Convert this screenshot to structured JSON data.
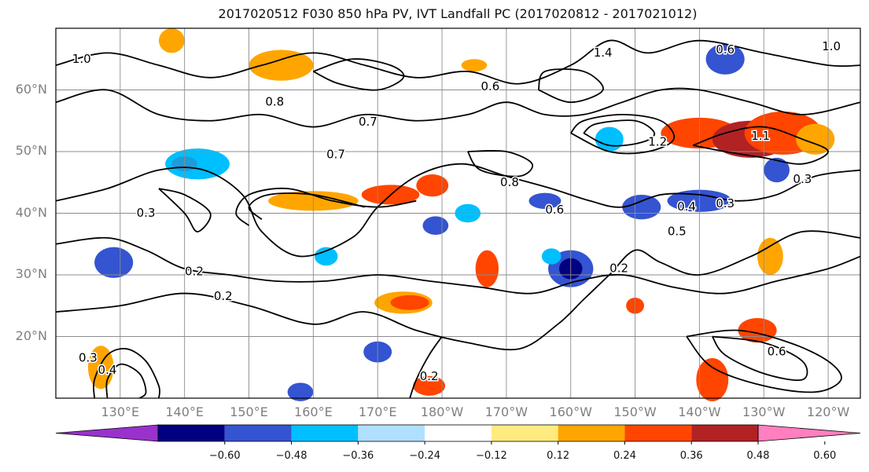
{
  "title": "2017020512 F030 850 hPa PV, IVT Landfall PC (2017020812 - 2017021012)",
  "map": {
    "projection": "PlateCarree",
    "lon_range": [
      120,
      245
    ],
    "lat_range": [
      10,
      70
    ],
    "lat_ticks": [
      {
        "lat": 60,
        "label": "60°N"
      },
      {
        "lat": 50,
        "label": "50°N"
      },
      {
        "lat": 40,
        "label": "40°N"
      },
      {
        "lat": 30,
        "label": "30°N"
      },
      {
        "lat": 20,
        "label": "20°N"
      }
    ],
    "lon_ticks": [
      {
        "lon": 130,
        "label": "130°E"
      },
      {
        "lon": 140,
        "label": "140°E"
      },
      {
        "lon": 150,
        "label": "150°E"
      },
      {
        "lon": 160,
        "label": "160°E"
      },
      {
        "lon": 170,
        "label": "170°E"
      },
      {
        "lon": 180,
        "label": "180°W"
      },
      {
        "lon": 190,
        "label": "170°W"
      },
      {
        "lon": 200,
        "label": "160°W"
      },
      {
        "lon": 210,
        "label": "150°W"
      },
      {
        "lon": 220,
        "label": "140°W"
      },
      {
        "lon": 230,
        "label": "130°W"
      },
      {
        "lon": 240,
        "label": "120°W"
      }
    ],
    "gridlines": true,
    "contour_labels": [
      {
        "lon": 124.0,
        "lat": 65.0,
        "label": "1.0"
      },
      {
        "lon": 154.0,
        "lat": 58.0,
        "label": "0.8"
      },
      {
        "lon": 168.5,
        "lat": 54.8,
        "label": "0.7"
      },
      {
        "lon": 163.5,
        "lat": 49.5,
        "label": "0.7"
      },
      {
        "lon": 134.0,
        "lat": 40.0,
        "label": "0.3"
      },
      {
        "lon": 141.5,
        "lat": 30.5,
        "label": "0.2"
      },
      {
        "lon": 146.0,
        "lat": 26.5,
        "label": "0.2"
      },
      {
        "lon": 178.0,
        "lat": 13.5,
        "label": "0.2"
      },
      {
        "lon": 187.5,
        "lat": 60.5,
        "label": "0.6"
      },
      {
        "lon": 197.5,
        "lat": 40.5,
        "label": "0.6"
      },
      {
        "lon": 190.5,
        "lat": 45.0,
        "label": "0.8"
      },
      {
        "lon": 213.5,
        "lat": 51.5,
        "label": "1.2"
      },
      {
        "lon": 205.0,
        "lat": 66.0,
        "label": "1.4"
      },
      {
        "lon": 224.0,
        "lat": 66.5,
        "label": "0.6"
      },
      {
        "lon": 240.5,
        "lat": 67.0,
        "label": "1.0"
      },
      {
        "lon": 229.5,
        "lat": 52.5,
        "label": "1.1"
      },
      {
        "lon": 218.0,
        "lat": 41.0,
        "label": "0.4"
      },
      {
        "lon": 224.0,
        "lat": 41.5,
        "label": "0.3"
      },
      {
        "lon": 216.5,
        "lat": 37.0,
        "label": "0.5"
      },
      {
        "lon": 236.0,
        "lat": 45.5,
        "label": "0.3"
      },
      {
        "lon": 207.5,
        "lat": 31.0,
        "label": "0.2"
      },
      {
        "lon": 232.0,
        "lat": 17.5,
        "label": "0.6"
      },
      {
        "lon": 128.0,
        "lat": 14.5,
        "label": "0.4"
      },
      {
        "lon": 125.0,
        "lat": 16.5,
        "label": "0.3"
      }
    ],
    "contours": [
      [
        [
          120,
          42
        ],
        [
          128,
          44
        ],
        [
          136,
          47
        ],
        [
          143,
          47
        ],
        [
          149,
          43
        ],
        [
          152,
          37
        ],
        [
          158,
          33
        ],
        [
          166,
          36
        ],
        [
          170,
          41
        ],
        [
          176,
          46
        ],
        [
          183,
          48
        ],
        [
          190,
          46
        ],
        [
          197,
          44
        ],
        [
          203,
          42
        ],
        [
          208,
          41
        ],
        [
          214,
          43
        ],
        [
          220,
          43
        ],
        [
          226,
          42
        ],
        [
          232,
          43
        ],
        [
          238,
          46
        ],
        [
          245,
          47
        ]
      ],
      [
        [
          120,
          35
        ],
        [
          128,
          36
        ],
        [
          134,
          34
        ],
        [
          140,
          31
        ],
        [
          147,
          30
        ],
        [
          154,
          29
        ],
        [
          162,
          29
        ],
        [
          170,
          30
        ],
        [
          178,
          29
        ],
        [
          186,
          28
        ],
        [
          194,
          27
        ],
        [
          201,
          29
        ],
        [
          208,
          30
        ],
        [
          216,
          28
        ],
        [
          224,
          27
        ],
        [
          232,
          29
        ],
        [
          240,
          31
        ],
        [
          245,
          33
        ]
      ],
      [
        [
          120,
          24
        ],
        [
          130,
          25
        ],
        [
          140,
          27
        ],
        [
          150,
          25
        ],
        [
          160,
          22
        ],
        [
          168,
          24
        ],
        [
          176,
          21
        ],
        [
          184,
          19
        ],
        [
          192,
          18
        ],
        [
          198,
          22
        ],
        [
          202,
          26
        ],
        [
          206,
          30
        ],
        [
          210,
          34
        ],
        [
          214,
          32
        ],
        [
          220,
          30
        ],
        [
          228,
          33
        ],
        [
          236,
          37
        ],
        [
          245,
          36
        ]
      ],
      [
        [
          120,
          58
        ],
        [
          128,
          60
        ],
        [
          136,
          56
        ],
        [
          144,
          55
        ],
        [
          152,
          56
        ],
        [
          160,
          54
        ],
        [
          168,
          56
        ],
        [
          176,
          55
        ],
        [
          184,
          56
        ],
        [
          190,
          58
        ],
        [
          196,
          56
        ],
        [
          202,
          56
        ],
        [
          208,
          58
        ],
        [
          214,
          60
        ],
        [
          220,
          60
        ],
        [
          228,
          58
        ],
        [
          236,
          56
        ],
        [
          245,
          58
        ]
      ],
      [
        [
          120,
          64
        ],
        [
          128,
          66
        ],
        [
          136,
          64
        ],
        [
          144,
          62
        ],
        [
          152,
          64
        ],
        [
          160,
          66
        ],
        [
          168,
          64
        ],
        [
          176,
          62
        ],
        [
          184,
          63
        ],
        [
          192,
          61
        ],
        [
          200,
          64
        ],
        [
          206,
          68
        ],
        [
          212,
          66
        ],
        [
          220,
          68
        ],
        [
          230,
          66
        ],
        [
          240,
          64
        ],
        [
          245,
          64
        ]
      ],
      [
        [
          128,
          10
        ],
        [
          128,
          13
        ],
        [
          130,
          15.5
        ],
        [
          133,
          14
        ],
        [
          134,
          11
        ],
        [
          133,
          10
        ]
      ],
      [
        [
          126,
          10
        ],
        [
          126,
          13
        ],
        [
          128,
          17
        ],
        [
          131,
          18
        ],
        [
          134,
          16
        ],
        [
          136,
          12
        ],
        [
          136,
          10
        ]
      ],
      [
        [
          150,
          38
        ],
        [
          148,
          40
        ],
        [
          150,
          43
        ],
        [
          156,
          44
        ],
        [
          163,
          42
        ],
        [
          170,
          41
        ],
        [
          176,
          42
        ]
      ],
      [
        [
          152,
          39
        ],
        [
          150,
          41
        ],
        [
          153,
          43
        ],
        [
          160,
          43
        ],
        [
          168,
          41
        ]
      ],
      [
        [
          200,
          53
        ],
        [
          206,
          50
        ],
        [
          212,
          50
        ],
        [
          216,
          52
        ],
        [
          214,
          55
        ],
        [
          208,
          56
        ],
        [
          202,
          55
        ],
        [
          200,
          53
        ]
      ],
      [
        [
          202,
          53
        ],
        [
          206,
          51
        ],
        [
          211,
          51.5
        ],
        [
          213,
          53
        ],
        [
          210,
          55
        ],
        [
          204,
          54.5
        ],
        [
          202,
          53
        ]
      ],
      [
        [
          195,
          60
        ],
        [
          200,
          58
        ],
        [
          205,
          60
        ],
        [
          202,
          63
        ],
        [
          196,
          63
        ],
        [
          195,
          60
        ]
      ],
      [
        [
          218,
          20
        ],
        [
          226,
          21
        ],
        [
          234,
          19
        ],
        [
          240,
          16
        ],
        [
          242,
          13
        ],
        [
          238,
          11
        ],
        [
          230,
          12
        ],
        [
          222,
          15
        ],
        [
          218,
          20
        ]
      ],
      [
        [
          222,
          20
        ],
        [
          230,
          19
        ],
        [
          236,
          16
        ],
        [
          236,
          13
        ],
        [
          230,
          14
        ],
        [
          224,
          17
        ],
        [
          222,
          20
        ]
      ],
      [
        [
          175,
          10
        ],
        [
          176,
          13
        ],
        [
          178,
          17
        ],
        [
          180,
          20
        ]
      ],
      [
        [
          219,
          51
        ],
        [
          224,
          53
        ],
        [
          230,
          54
        ],
        [
          236,
          52
        ],
        [
          240,
          50
        ],
        [
          236,
          48
        ],
        [
          230,
          49
        ],
        [
          224,
          50
        ],
        [
          219,
          51
        ]
      ],
      [
        [
          184,
          50
        ],
        [
          186,
          47
        ],
        [
          192,
          46
        ],
        [
          194,
          48
        ],
        [
          190,
          50
        ],
        [
          184,
          50
        ]
      ],
      [
        [
          136,
          44
        ],
        [
          140,
          43
        ],
        [
          144,
          40
        ],
        [
          142,
          37
        ],
        [
          140,
          40
        ],
        [
          136,
          44
        ]
      ],
      [
        [
          160,
          63
        ],
        [
          166,
          65
        ],
        [
          172,
          64
        ],
        [
          174,
          62
        ],
        [
          170,
          60
        ],
        [
          164,
          61
        ],
        [
          160,
          63
        ]
      ]
    ],
    "shaded_regions": [
      {
        "lon": 142,
        "lat": 48,
        "rx": 5,
        "ry": 2.5,
        "color": "#00bfff"
      },
      {
        "lon": 140,
        "lat": 48,
        "rx": 2,
        "ry": 1.2,
        "color": "#1f9bd9"
      },
      {
        "lon": 160,
        "lat": 42,
        "rx": 7,
        "ry": 1.6,
        "color": "#ffa500"
      },
      {
        "lon": 172,
        "lat": 43,
        "rx": 4.5,
        "ry": 1.6,
        "color": "#ff4500"
      },
      {
        "lon": 178.5,
        "lat": 44.5,
        "rx": 2.5,
        "ry": 1.8,
        "color": "#ff4500"
      },
      {
        "lon": 184,
        "lat": 40,
        "rx": 2,
        "ry": 1.5,
        "color": "#00bfff"
      },
      {
        "lon": 179,
        "lat": 38,
        "rx": 2,
        "ry": 1.5,
        "color": "#3454d1"
      },
      {
        "lon": 200,
        "lat": 31,
        "rx": 3.5,
        "ry": 3.0,
        "color": "#3454d1"
      },
      {
        "lon": 200,
        "lat": 31,
        "rx": 1.8,
        "ry": 1.7,
        "color": "#000080"
      },
      {
        "lon": 197,
        "lat": 33,
        "rx": 1.5,
        "ry": 1.3,
        "color": "#00bfff"
      },
      {
        "lon": 187,
        "lat": 31,
        "rx": 1.8,
        "ry": 3.0,
        "color": "#ff4500"
      },
      {
        "lon": 174,
        "lat": 25.5,
        "rx": 4.5,
        "ry": 1.8,
        "color": "#ffa500"
      },
      {
        "lon": 175,
        "lat": 25.5,
        "rx": 3.0,
        "ry": 1.2,
        "color": "#ff4500"
      },
      {
        "lon": 170,
        "lat": 17.5,
        "rx": 2.2,
        "ry": 1.7,
        "color": "#3454d1"
      },
      {
        "lon": 220,
        "lat": 53,
        "rx": 6,
        "ry": 2.5,
        "color": "#ff4500"
      },
      {
        "lon": 228,
        "lat": 52,
        "rx": 6,
        "ry": 3.0,
        "color": "#b22222"
      },
      {
        "lon": 233,
        "lat": 53,
        "rx": 6,
        "ry": 3.5,
        "color": "#ff4500"
      },
      {
        "lon": 238,
        "lat": 52,
        "rx": 3,
        "ry": 2.5,
        "color": "#ffa500"
      },
      {
        "lon": 232,
        "lat": 47,
        "rx": 2,
        "ry": 2.0,
        "color": "#3454d1"
      },
      {
        "lon": 220,
        "lat": 42,
        "rx": 5,
        "ry": 1.8,
        "color": "#3454d1"
      },
      {
        "lon": 211,
        "lat": 41,
        "rx": 3,
        "ry": 2.0,
        "color": "#3454d1"
      },
      {
        "lon": 196,
        "lat": 42,
        "rx": 2.5,
        "ry": 1.3,
        "color": "#3454d1"
      },
      {
        "lon": 224,
        "lat": 65,
        "rx": 3,
        "ry": 2.5,
        "color": "#3454d1"
      },
      {
        "lon": 229,
        "lat": 21,
        "rx": 3,
        "ry": 2.0,
        "color": "#ff4500"
      },
      {
        "lon": 222,
        "lat": 13,
        "rx": 2.5,
        "ry": 3.5,
        "color": "#ff4500"
      },
      {
        "lon": 127,
        "lat": 15,
        "rx": 2,
        "ry": 3.5,
        "color": "#ffa500"
      },
      {
        "lon": 129,
        "lat": 32,
        "rx": 3,
        "ry": 2.5,
        "color": "#3454d1"
      },
      {
        "lon": 155,
        "lat": 64,
        "rx": 5,
        "ry": 2.5,
        "color": "#ffa500"
      },
      {
        "lon": 158,
        "lat": 11,
        "rx": 2,
        "ry": 1.5,
        "color": "#3454d1"
      },
      {
        "lon": 178,
        "lat": 12,
        "rx": 2.5,
        "ry": 1.6,
        "color": "#ff4500"
      },
      {
        "lon": 231,
        "lat": 33,
        "rx": 2,
        "ry": 3.0,
        "color": "#ffa500"
      },
      {
        "lon": 185,
        "lat": 64,
        "rx": 2,
        "ry": 1.0,
        "color": "#ffa500"
      },
      {
        "lon": 210,
        "lat": 25,
        "rx": 1.4,
        "ry": 1.3,
        "color": "#ff4500"
      },
      {
        "lon": 206,
        "lat": 52,
        "rx": 2.2,
        "ry": 2.0,
        "color": "#00bfff"
      },
      {
        "lon": 162,
        "lat": 33,
        "rx": 1.8,
        "ry": 1.5,
        "color": "#00bfff"
      },
      {
        "lon": 138,
        "lat": 68,
        "rx": 2,
        "ry": 2.0,
        "color": "#ffa500"
      }
    ]
  },
  "colorbar": {
    "colors": [
      "#9932cc",
      "#000080",
      "#3454d1",
      "#00bfff",
      "#b0e0ff",
      "#ffffff",
      "#ffeb80",
      "#ffa500",
      "#ff4500",
      "#b22222",
      "#ff7fbf"
    ],
    "tick_labels": [
      "−0.60",
      "−0.48",
      "−0.36",
      "−0.24",
      "−0.12",
      "0.12",
      "0.24",
      "0.36",
      "0.48",
      "0.60"
    ]
  }
}
